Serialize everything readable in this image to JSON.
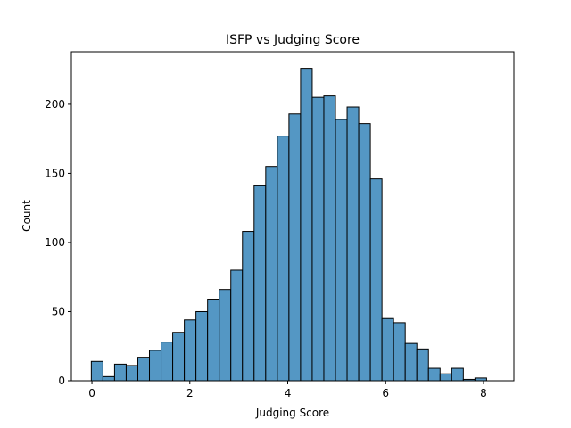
{
  "chart_data": {
    "type": "bar",
    "title": "ISFP vs Judging Score",
    "xlabel": "Judging Score",
    "ylabel": "Count",
    "xlim": [
      -0.42,
      8.62
    ],
    "ylim": [
      0,
      238
    ],
    "xticks": [
      "0",
      "2",
      "4",
      "6",
      "8"
    ],
    "yticks": [
      "0",
      "50",
      "100",
      "150",
      "200"
    ],
    "bin_width": 0.2375,
    "bins_start": -0.0125,
    "bar_color": "#5497c4",
    "values": [
      14,
      3,
      12,
      11,
      17,
      22,
      28,
      35,
      44,
      50,
      59,
      66,
      80,
      108,
      141,
      155,
      177,
      193,
      226,
      205,
      206,
      189,
      198,
      186,
      146,
      45,
      42,
      27,
      23,
      9,
      5,
      9,
      1,
      2
    ]
  }
}
